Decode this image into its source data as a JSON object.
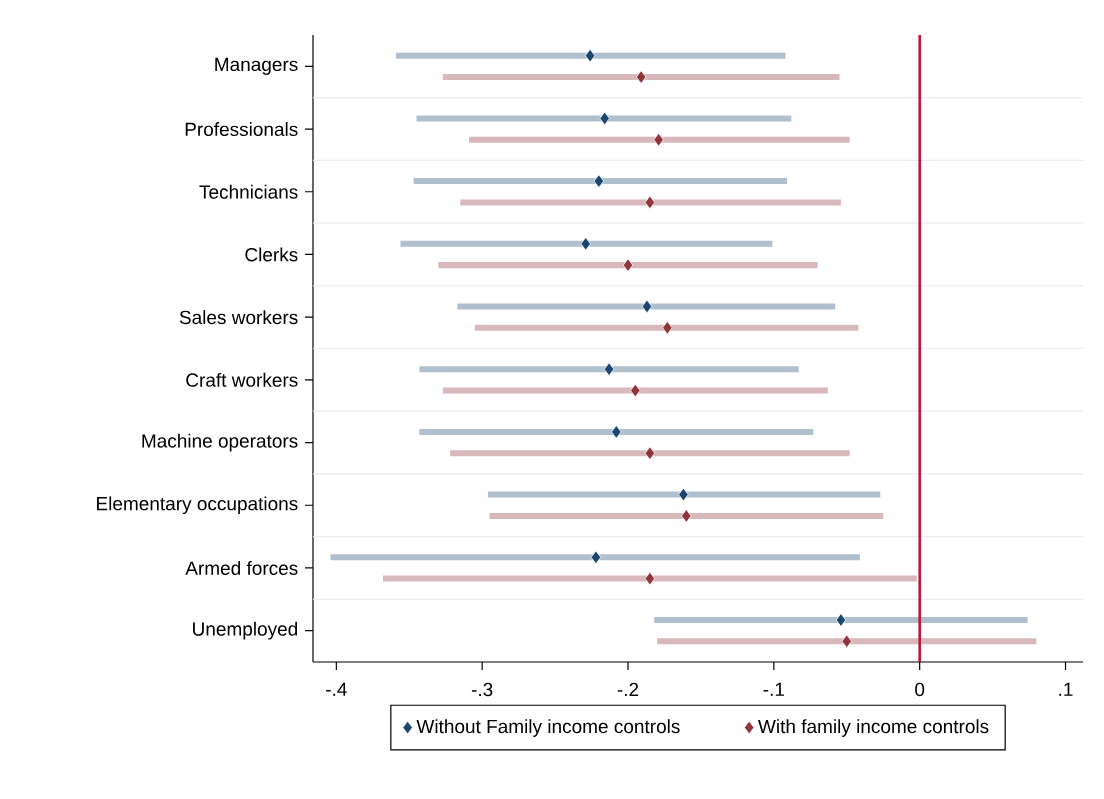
{
  "chart_data": {
    "type": "scatter",
    "orientation": "horizontal",
    "categories": [
      "Managers",
      "Professionals",
      "Technicians",
      "Clerks",
      "Sales workers",
      "Craft workers",
      "Machine operators",
      "Elementary occupations",
      "Armed forces",
      "Unemployed"
    ],
    "series": [
      {
        "name": "Without Family income controls",
        "color": "#1a476f",
        "values": [
          -0.226,
          -0.216,
          -0.22,
          -0.229,
          -0.187,
          -0.213,
          -0.208,
          -0.162,
          -0.222,
          -0.054
        ],
        "errors": [
          [
            -0.359,
            -0.092
          ],
          [
            -0.345,
            -0.088
          ],
          [
            -0.347,
            -0.091
          ],
          [
            -0.356,
            -0.101
          ],
          [
            -0.317,
            -0.058
          ],
          [
            -0.343,
            -0.083
          ],
          [
            -0.343,
            -0.073
          ],
          [
            -0.296,
            -0.027
          ],
          [
            -0.404,
            -0.041
          ],
          [
            -0.182,
            0.074
          ]
        ]
      },
      {
        "name": "With family income controls",
        "color": "#90353b",
        "values": [
          -0.191,
          -0.179,
          -0.185,
          -0.2,
          -0.173,
          -0.195,
          -0.185,
          -0.16,
          -0.185,
          -0.05
        ],
        "errors": [
          [
            -0.327,
            -0.055
          ],
          [
            -0.309,
            -0.048
          ],
          [
            -0.315,
            -0.054
          ],
          [
            -0.33,
            -0.07
          ],
          [
            -0.305,
            -0.042
          ],
          [
            -0.327,
            -0.063
          ],
          [
            -0.322,
            -0.048
          ],
          [
            -0.295,
            -0.025
          ],
          [
            -0.368,
            -0.002
          ],
          [
            -0.18,
            0.08
          ]
        ]
      }
    ],
    "xlim": [
      -0.416,
      0.112
    ],
    "xticks": [
      {
        "value": -0.4,
        "label": "-.4"
      },
      {
        "value": -0.3,
        "label": "-.3"
      },
      {
        "value": -0.2,
        "label": "-.2"
      },
      {
        "value": -0.1,
        "label": "-.1"
      },
      0,
      {
        "value": 0.1,
        "label": ".1"
      }
    ],
    "ref_lines": [
      {
        "axis": "x",
        "value": 0,
        "color": "#c0143c"
      }
    ],
    "grid": "y",
    "legend": "bottom",
    "marker": "diamond"
  }
}
